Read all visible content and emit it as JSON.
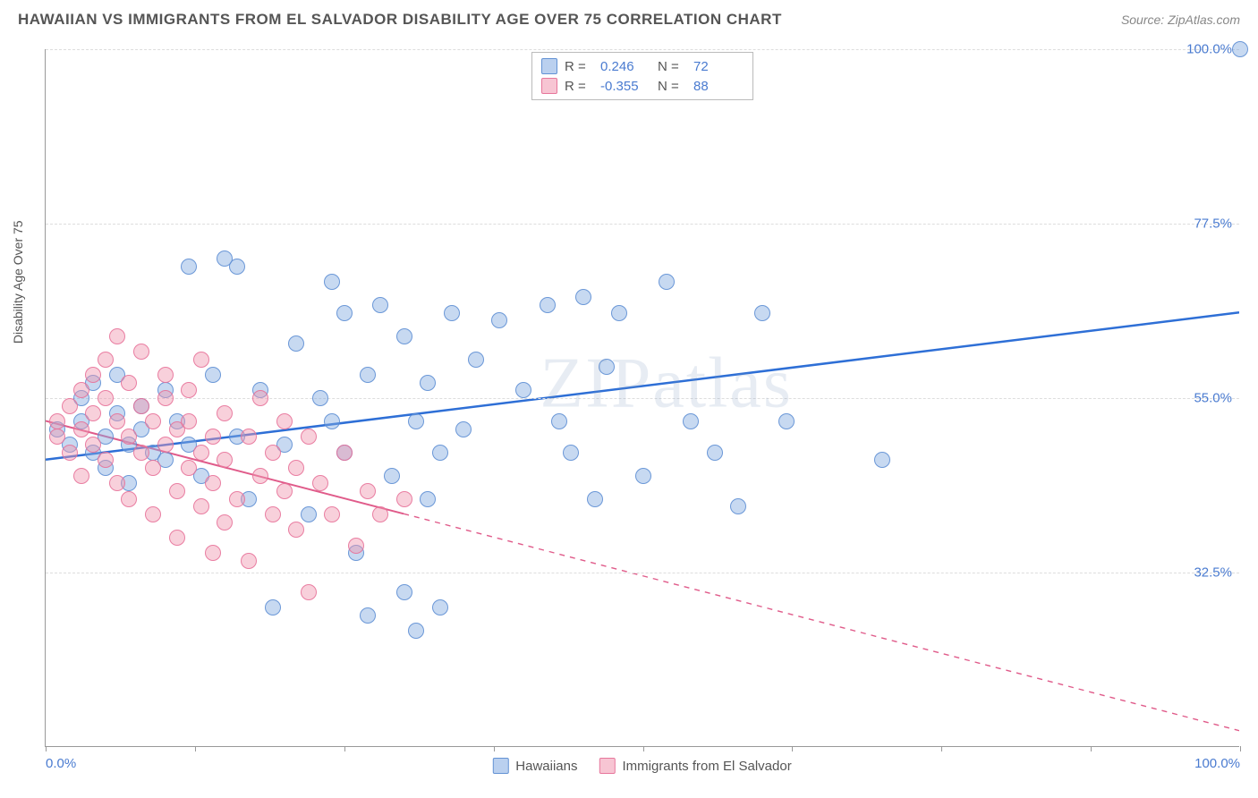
{
  "header": {
    "title": "HAWAIIAN VS IMMIGRANTS FROM EL SALVADOR DISABILITY AGE OVER 75 CORRELATION CHART",
    "source": "Source: ZipAtlas.com"
  },
  "watermark": "ZIPatlas",
  "chart": {
    "type": "scatter",
    "y_axis_label": "Disability Age Over 75",
    "xlim": [
      0,
      100
    ],
    "ylim": [
      10,
      100
    ],
    "background_color": "#ffffff",
    "grid_color": "#dddddd",
    "axis_color": "#999999",
    "tick_label_color": "#4a7bd0",
    "y_ticks": [
      {
        "value": 32.5,
        "label": "32.5%"
      },
      {
        "value": 55.0,
        "label": "55.0%"
      },
      {
        "value": 77.5,
        "label": "77.5%"
      },
      {
        "value": 100.0,
        "label": "100.0%"
      }
    ],
    "x_ticks_minor": [
      0,
      12.5,
      25,
      37.5,
      50,
      62.5,
      75,
      87.5,
      100
    ],
    "x_tick_labels": [
      {
        "value": 0,
        "label": "0.0%"
      },
      {
        "value": 100,
        "label": "100.0%"
      }
    ],
    "series": [
      {
        "key": "hawaiians",
        "name": "Hawaiians",
        "color_fill": "rgba(130,170,225,0.45)",
        "color_stroke": "rgba(90,140,210,0.85)",
        "r_value": "0.246",
        "n_value": "72",
        "trend": {
          "x1": 0,
          "y1": 47,
          "x2": 100,
          "y2": 66,
          "solid_until_x": 100,
          "color": "#2e6fd6",
          "width": 2.5
        },
        "points": [
          [
            1,
            51
          ],
          [
            2,
            49
          ],
          [
            3,
            52
          ],
          [
            3,
            55
          ],
          [
            4,
            48
          ],
          [
            4,
            57
          ],
          [
            5,
            50
          ],
          [
            5,
            46
          ],
          [
            6,
            53
          ],
          [
            6,
            58
          ],
          [
            7,
            49
          ],
          [
            7,
            44
          ],
          [
            8,
            54
          ],
          [
            8,
            51
          ],
          [
            9,
            48
          ],
          [
            10,
            56
          ],
          [
            10,
            47
          ],
          [
            11,
            52
          ],
          [
            12,
            49
          ],
          [
            12,
            72
          ],
          [
            13,
            45
          ],
          [
            14,
            58
          ],
          [
            15,
            73
          ],
          [
            16,
            50
          ],
          [
            16,
            72
          ],
          [
            17,
            42
          ],
          [
            18,
            56
          ],
          [
            19,
            28
          ],
          [
            20,
            49
          ],
          [
            21,
            62
          ],
          [
            22,
            40
          ],
          [
            23,
            55
          ],
          [
            24,
            70
          ],
          [
            24,
            52
          ],
          [
            25,
            48
          ],
          [
            25,
            66
          ],
          [
            26,
            35
          ],
          [
            27,
            58
          ],
          [
            27,
            27
          ],
          [
            28,
            67
          ],
          [
            29,
            45
          ],
          [
            30,
            63
          ],
          [
            30,
            30
          ],
          [
            31,
            52
          ],
          [
            31,
            25
          ],
          [
            32,
            42
          ],
          [
            32,
            57
          ],
          [
            33,
            48
          ],
          [
            33,
            28
          ],
          [
            34,
            66
          ],
          [
            35,
            51
          ],
          [
            36,
            60
          ],
          [
            38,
            65
          ],
          [
            40,
            56
          ],
          [
            42,
            67
          ],
          [
            43,
            52
          ],
          [
            44,
            48
          ],
          [
            45,
            68
          ],
          [
            46,
            42
          ],
          [
            47,
            59
          ],
          [
            48,
            66
          ],
          [
            50,
            45
          ],
          [
            52,
            70
          ],
          [
            54,
            52
          ],
          [
            56,
            48
          ],
          [
            58,
            41
          ],
          [
            60,
            66
          ],
          [
            62,
            52
          ],
          [
            70,
            47
          ],
          [
            100,
            100
          ]
        ]
      },
      {
        "key": "immigrants",
        "name": "Immigrants from El Salvador",
        "color_fill": "rgba(240,150,175,0.45)",
        "color_stroke": "rgba(230,110,150,0.85)",
        "r_value": "-0.355",
        "n_value": "88",
        "trend": {
          "x1": 0,
          "y1": 52,
          "x2": 100,
          "y2": 12,
          "solid_until_x": 30,
          "color": "#e05b8a",
          "width": 2
        },
        "points": [
          [
            1,
            52
          ],
          [
            1,
            50
          ],
          [
            2,
            54
          ],
          [
            2,
            48
          ],
          [
            3,
            56
          ],
          [
            3,
            51
          ],
          [
            3,
            45
          ],
          [
            4,
            58
          ],
          [
            4,
            49
          ],
          [
            4,
            53
          ],
          [
            5,
            47
          ],
          [
            5,
            60
          ],
          [
            5,
            55
          ],
          [
            6,
            44
          ],
          [
            6,
            52
          ],
          [
            6,
            63
          ],
          [
            7,
            50
          ],
          [
            7,
            57
          ],
          [
            7,
            42
          ],
          [
            8,
            54
          ],
          [
            8,
            48
          ],
          [
            8,
            61
          ],
          [
            9,
            46
          ],
          [
            9,
            52
          ],
          [
            9,
            40
          ],
          [
            10,
            55
          ],
          [
            10,
            49
          ],
          [
            10,
            58
          ],
          [
            11,
            43
          ],
          [
            11,
            51
          ],
          [
            11,
            37
          ],
          [
            12,
            56
          ],
          [
            12,
            46
          ],
          [
            12,
            52
          ],
          [
            13,
            41
          ],
          [
            13,
            48
          ],
          [
            13,
            60
          ],
          [
            14,
            50
          ],
          [
            14,
            44
          ],
          [
            14,
            35
          ],
          [
            15,
            53
          ],
          [
            15,
            47
          ],
          [
            15,
            39
          ],
          [
            16,
            42
          ],
          [
            17,
            50
          ],
          [
            17,
            34
          ],
          [
            18,
            45
          ],
          [
            18,
            55
          ],
          [
            19,
            40
          ],
          [
            19,
            48
          ],
          [
            20,
            43
          ],
          [
            20,
            52
          ],
          [
            21,
            38
          ],
          [
            21,
            46
          ],
          [
            22,
            50
          ],
          [
            22,
            30
          ],
          [
            23,
            44
          ],
          [
            24,
            40
          ],
          [
            25,
            48
          ],
          [
            26,
            36
          ],
          [
            27,
            43
          ],
          [
            28,
            40
          ],
          [
            30,
            42
          ]
        ]
      }
    ],
    "legend_bottom": [
      {
        "swatch_class": "sw-a",
        "label": "Hawaiians"
      },
      {
        "swatch_class": "sw-b",
        "label": "Immigrants from El Salvador"
      }
    ]
  }
}
